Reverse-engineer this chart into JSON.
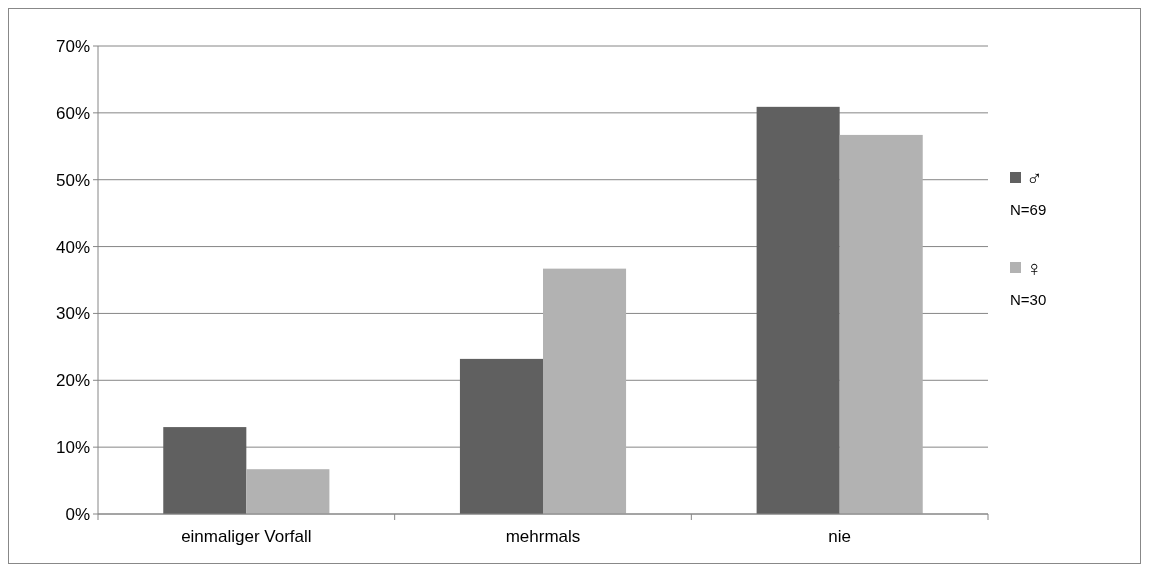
{
  "chart_data": {
    "type": "bar",
    "categories": [
      "einmaliger Vorfall",
      "mehrmals",
      "nie"
    ],
    "series": [
      {
        "name": "♂",
        "color": "#606060",
        "values": [
          13.0,
          23.2,
          60.9
        ]
      },
      {
        "name": "♀",
        "color": "#b2b2b2",
        "values": [
          6.7,
          36.7,
          56.7
        ]
      }
    ],
    "ylim": [
      0,
      70
    ],
    "yticks": [
      {
        "value": 0,
        "label": "0%"
      },
      {
        "value": 10,
        "label": "10%"
      },
      {
        "value": 20,
        "label": "20%"
      },
      {
        "value": 30,
        "label": "30%"
      },
      {
        "value": 40,
        "label": "40%"
      },
      {
        "value": 50,
        "label": "50%"
      },
      {
        "value": 60,
        "label": "60%"
      },
      {
        "value": 70,
        "label": "70%"
      }
    ],
    "grid": "y",
    "legend": "right",
    "annotations": [
      "N=69",
      "N=30"
    ]
  }
}
